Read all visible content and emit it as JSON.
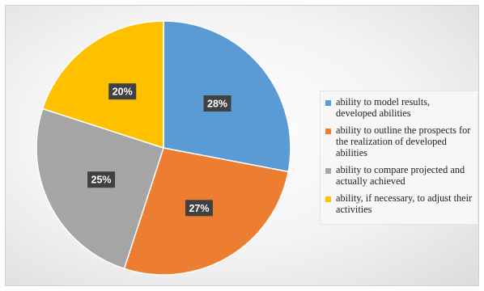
{
  "chart_data": {
    "type": "pie",
    "title": "",
    "categories": [
      "ability to model results, developed abilities",
      "ability to outline the prospects for the realization of developed abilities",
      "ability to compare projected and actually achieved",
      "ability, if necessary, to adjust their activities"
    ],
    "values": [
      28,
      27,
      25,
      20
    ],
    "value_labels": [
      "28%",
      "27%",
      "25%",
      "20%"
    ],
    "colors": [
      "#5b9bd5",
      "#ed7d31",
      "#a5a5a5",
      "#ffc000"
    ],
    "start_angle_deg": 0,
    "direction": "clockwise",
    "legend_placement": "right"
  }
}
